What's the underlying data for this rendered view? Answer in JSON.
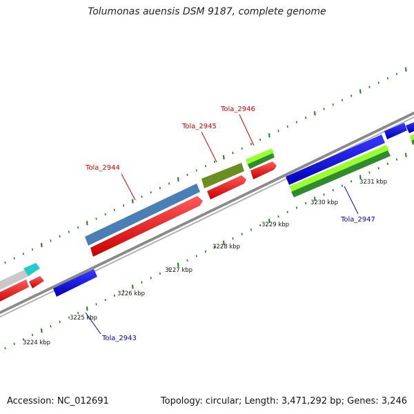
{
  "title": "Tolumonas auensis DSM 9187, complete genome",
  "footer": {
    "accession": "Accession: NC_012691",
    "topology": "Topology: circular; Length: 3,471,292 bp; Genes: 3,246"
  },
  "colors": {
    "backbone": "#8a8a8a",
    "tick": "#1e7a1e",
    "label_red": "#cc0000",
    "label_blue": "#0000aa",
    "cds_red": "#ff0000",
    "cds_blue": "#0000ee",
    "cds_steelblue": "#4a7fb5",
    "cds_olive": "#6b8e23",
    "cds_lime": "#99ff33",
    "cds_green": "#2e8b2e",
    "cds_cyan": "#22cccc",
    "cds_gray": "#c8c8c8"
  },
  "scale": {
    "unit": "kbp",
    "labels": [
      {
        "kbp": 3224,
        "text": "3224 kbp"
      },
      {
        "kbp": 3225,
        "text": "3225 kbp"
      },
      {
        "kbp": 3226,
        "text": "3226 kbp"
      },
      {
        "kbp": 3227,
        "text": "3227 kbp"
      },
      {
        "kbp": 3228,
        "text": "3228 kbp"
      },
      {
        "kbp": 3229,
        "text": "3229 kbp"
      },
      {
        "kbp": 3230,
        "text": "3230 kbp"
      },
      {
        "kbp": 3231,
        "text": "3231 kbp"
      }
    ]
  },
  "gene_labels": [
    {
      "name": "Tola_2943",
      "color": "blue"
    },
    {
      "name": "Tola_2944",
      "color": "red"
    },
    {
      "name": "Tola_2945",
      "color": "red"
    },
    {
      "name": "Tola_2946",
      "color": "red"
    },
    {
      "name": "Tola_2947",
      "color": "blue"
    }
  ]
}
